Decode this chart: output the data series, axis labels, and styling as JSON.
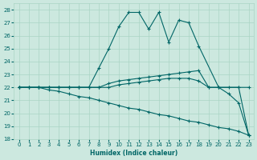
{
  "xlabel": "Humidex (Indice chaleur)",
  "xlim": [
    -0.5,
    23.5
  ],
  "ylim": [
    18,
    28.5
  ],
  "yticks": [
    18,
    19,
    20,
    21,
    22,
    23,
    24,
    25,
    26,
    27,
    28
  ],
  "xticks": [
    0,
    1,
    2,
    3,
    4,
    5,
    6,
    7,
    8,
    9,
    10,
    11,
    12,
    13,
    14,
    15,
    16,
    17,
    18,
    19,
    20,
    21,
    22,
    23
  ],
  "bg_color": "#cce8df",
  "grid_color": "#aad4c4",
  "line_color": "#006666",
  "lines": [
    {
      "x": [
        0,
        1,
        2,
        3,
        4,
        5,
        6,
        7,
        8,
        9,
        10,
        11,
        12,
        13,
        14,
        15,
        16,
        17,
        18,
        20,
        22,
        23
      ],
      "y": [
        22,
        22,
        22,
        22,
        22,
        22,
        22,
        22,
        23.5,
        25.0,
        26.7,
        27.8,
        27.8,
        26.5,
        27.8,
        25.5,
        27.2,
        27.0,
        25.2,
        22,
        22,
        18.3
      ]
    },
    {
      "x": [
        0,
        1,
        2,
        3,
        4,
        5,
        6,
        7,
        8,
        9,
        10,
        11,
        12,
        13,
        14,
        15,
        16,
        17,
        18,
        19,
        20,
        21,
        22,
        23
      ],
      "y": [
        22,
        22,
        22,
        22,
        22,
        22,
        22,
        22,
        22,
        22.3,
        22.5,
        22.6,
        22.7,
        22.8,
        22.9,
        23.0,
        23.1,
        23.2,
        23.3,
        22,
        22,
        22,
        22,
        22
      ]
    },
    {
      "x": [
        0,
        1,
        2,
        3,
        4,
        5,
        6,
        7,
        8,
        9,
        10,
        11,
        12,
        13,
        14,
        15,
        16,
        17,
        18,
        19,
        20,
        21,
        22,
        23
      ],
      "y": [
        22,
        22,
        22,
        22,
        22,
        22,
        22,
        22,
        22,
        22,
        22.2,
        22.3,
        22.4,
        22.5,
        22.6,
        22.7,
        22.7,
        22.7,
        22.5,
        22,
        22,
        21.5,
        20.8,
        18.3
      ]
    },
    {
      "x": [
        0,
        2,
        3,
        4,
        5,
        6,
        7,
        8,
        9,
        10,
        11,
        12,
        13,
        14,
        15,
        16,
        17,
        18,
        19,
        20,
        21,
        22,
        23
      ],
      "y": [
        22,
        22,
        21.8,
        21.7,
        21.5,
        21.3,
        21.2,
        21.0,
        20.8,
        20.6,
        20.4,
        20.3,
        20.1,
        19.9,
        19.8,
        19.6,
        19.4,
        19.3,
        19.1,
        18.9,
        18.8,
        18.6,
        18.3
      ]
    }
  ]
}
